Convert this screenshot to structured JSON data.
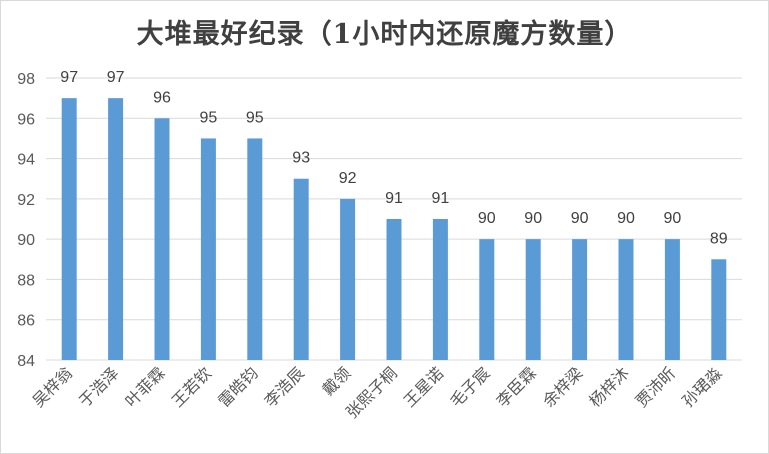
{
  "chart_data": {
    "type": "bar",
    "title": "大堆最好纪录（1小时内还原魔方数量）",
    "categories": [
      "吴梓翁",
      "于浩泽",
      "叶菲霖",
      "王若钦",
      "雷皓钧",
      "李浩辰",
      "戴领",
      "张熙子桐",
      "王星诺",
      "毛子宸",
      "李臣霖",
      "余梓梁",
      "杨梓沐",
      "贾沛昕",
      "孙珺淼"
    ],
    "values": [
      97,
      97,
      96,
      95,
      95,
      93,
      92,
      91,
      91,
      90,
      90,
      90,
      90,
      90,
      89
    ],
    "ylim": [
      84,
      98
    ],
    "yticks": [
      84,
      86,
      88,
      90,
      92,
      94,
      96,
      98
    ],
    "xlabel": "",
    "ylabel": "",
    "grid": true,
    "bar_color": "#5b9bd5",
    "grid_color": "#d9d9d9"
  }
}
